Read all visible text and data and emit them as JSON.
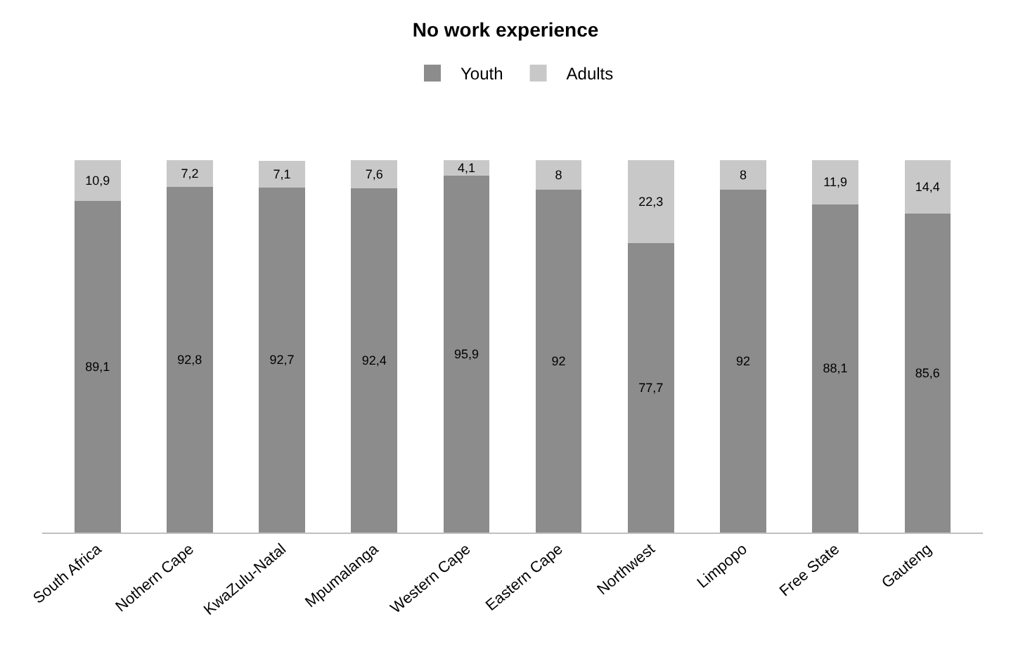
{
  "chart_data": {
    "type": "bar",
    "title": "No work experience",
    "stacked": true,
    "legend": "top",
    "categories": [
      "South Africa",
      "Nothern Cape",
      "KwaZulu-Natal",
      "Mpumalanga",
      "Western Cape",
      "Eastern Cape",
      "Northwest",
      "Limpopo",
      "Free State",
      "Gauteng"
    ],
    "series": [
      {
        "name": "Youth",
        "color": "#8c8c8c",
        "values": [
          89.1,
          92.8,
          92.7,
          92.4,
          95.9,
          92,
          77.7,
          92,
          88.1,
          85.6
        ],
        "value_labels": [
          "89,1",
          "92,8",
          "92,7",
          "92,4",
          "95,9",
          "92",
          "77,7",
          "92",
          "88,1",
          "85,6"
        ]
      },
      {
        "name": "Adults",
        "color": "#c8c8c8",
        "values": [
          10.9,
          7.2,
          7.1,
          7.6,
          4.1,
          8,
          22.3,
          8,
          11.9,
          14.4
        ],
        "value_labels": [
          "10,9",
          "7,2",
          "7,1",
          "7,6",
          "4,1",
          "8",
          "22,3",
          "8",
          "11,9",
          "14,4"
        ]
      }
    ]
  }
}
